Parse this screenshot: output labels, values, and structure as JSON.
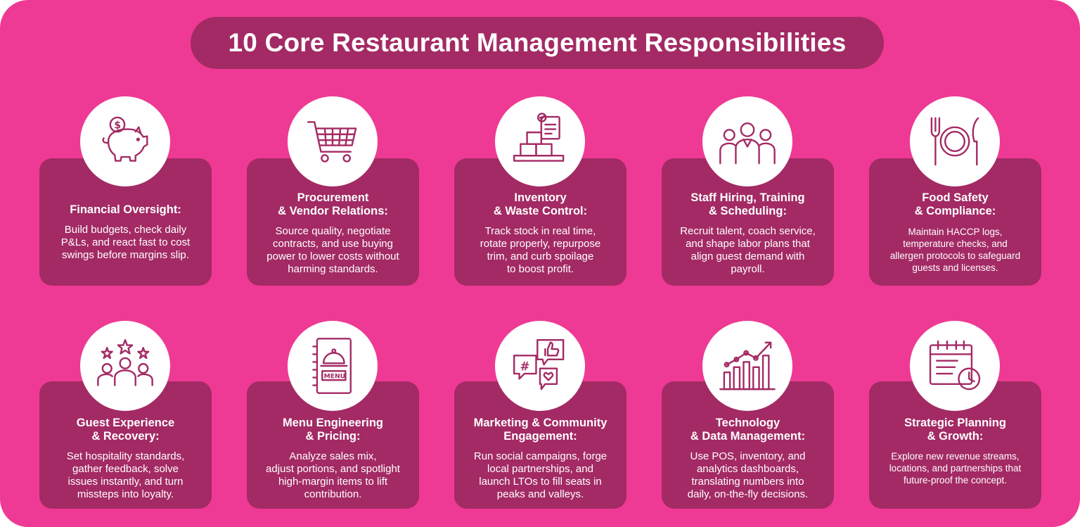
{
  "title": "10 Core Restaurant Management Responsibilities",
  "colors": {
    "background": "#ee3a94",
    "card": "#a32a64",
    "icon_circle": "#ffffff",
    "text": "#ffffff"
  },
  "cards": [
    {
      "icon": "piggy-bank-icon",
      "title": "Financial Oversight:",
      "desc": "Build budgets, check daily\nP&Ls, and react fast to cost\nswings before margins slip."
    },
    {
      "icon": "shopping-cart-icon",
      "title": "Procurement\n& Vendor Relations:",
      "desc": "Source quality, negotiate\ncontracts, and use buying\npower to lower costs without\nharming standards."
    },
    {
      "icon": "inventory-boxes-icon",
      "title": "Inventory\n& Waste Control:",
      "desc": "Track stock in real time,\nrotate properly, repurpose\ntrim, and curb spoilage\nto boost profit."
    },
    {
      "icon": "staff-team-icon",
      "title": "Staff Hiring, Training\n& Scheduling:",
      "desc": "Recruit talent, coach service,\nand shape labor plans that\nalign guest demand with\npayroll."
    },
    {
      "icon": "fork-plate-knife-icon",
      "title": "Food Safety\n& Compliance:",
      "desc": "Maintain HACCP logs,\ntemperature checks, and\nallergen protocols to safeguard\nguests and licenses."
    },
    {
      "icon": "guest-rating-icon",
      "title": "Guest Experience\n& Recovery:",
      "desc": "Set hospitality standards,\ngather feedback, solve\nissues instantly, and turn\nmissteps into loyalty."
    },
    {
      "icon": "menu-book-icon",
      "icon_text": "MENU",
      "title": "Menu Engineering\n& Pricing:",
      "desc": "Analyze sales mix,\nadjust portions, and spotlight\nhigh-margin items to lift\ncontribution."
    },
    {
      "icon": "social-chat-icon",
      "icon_text": "#",
      "title": "Marketing & Community\nEngagement:",
      "desc": "Run social campaigns, forge\nlocal partnerships, and\nlaunch LTOs to fill seats in\npeaks and valleys."
    },
    {
      "icon": "growth-chart-icon",
      "title": "Technology\n& Data Management:",
      "desc": "Use POS, inventory, and\nanalytics dashboards,\ntranslating numbers into\ndaily, on-the-fly decisions."
    },
    {
      "icon": "calendar-clock-icon",
      "title": "Strategic Planning\n& Growth:",
      "desc": "Explore new revenue streams,\nlocations, and partnerships that\nfuture-proof the concept."
    }
  ]
}
